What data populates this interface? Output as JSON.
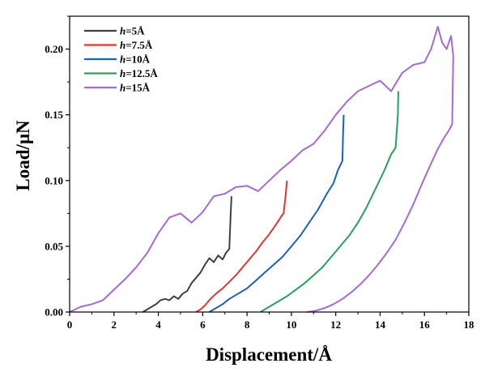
{
  "chart_data": {
    "type": "line",
    "xlabel": "Displacement/Å",
    "ylabel": "Load/μN",
    "xlim": [
      0,
      18
    ],
    "ylim": [
      0,
      0.225
    ],
    "xticks": [
      0,
      2,
      4,
      6,
      8,
      10,
      12,
      14,
      16,
      18
    ],
    "yticks": [
      0.0,
      0.05,
      0.1,
      0.15,
      0.2
    ],
    "ytick_labels": [
      "0.00",
      "0.05",
      "0.10",
      "0.15",
      "0.20"
    ],
    "xtick_labels": [
      "0",
      "2",
      "4",
      "6",
      "8",
      "10",
      "12",
      "14",
      "16",
      "18"
    ],
    "legend_position": "top-left",
    "grid": false,
    "series": [
      {
        "name_prefix": "h",
        "name_suffix": "=5Å",
        "color": "#404040",
        "x": [
          3.3,
          3.6,
          3.9,
          4.1,
          4.3,
          4.5,
          4.7,
          4.9,
          5.1,
          5.3,
          5.5,
          5.7,
          5.9,
          6.1,
          6.3,
          6.5,
          6.7,
          6.9,
          7.05,
          7.2,
          7.25,
          7.3
        ],
        "y": [
          0.0,
          0.003,
          0.006,
          0.009,
          0.01,
          0.009,
          0.012,
          0.01,
          0.014,
          0.016,
          0.022,
          0.026,
          0.03,
          0.036,
          0.041,
          0.038,
          0.043,
          0.04,
          0.045,
          0.048,
          0.07,
          0.088
        ]
      },
      {
        "name_prefix": "h",
        "name_suffix": "=7.5Å",
        "color": "#e8332e",
        "x": [
          5.7,
          5.9,
          6.1,
          6.3,
          6.6,
          6.9,
          7.2,
          7.5,
          7.8,
          8.1,
          8.4,
          8.7,
          8.95,
          9.2,
          9.4,
          9.55,
          9.65,
          9.75,
          9.8
        ],
        "y": [
          0.0,
          0.002,
          0.005,
          0.009,
          0.014,
          0.018,
          0.023,
          0.028,
          0.034,
          0.04,
          0.046,
          0.053,
          0.058,
          0.064,
          0.069,
          0.073,
          0.075,
          0.09,
          0.1
        ]
      },
      {
        "name_prefix": "h",
        "name_suffix": "=10Å",
        "color": "#1a5fc8",
        "x": [
          6.3,
          6.6,
          6.9,
          7.2,
          7.6,
          8.0,
          8.4,
          8.8,
          9.2,
          9.6,
          10.0,
          10.4,
          10.8,
          11.2,
          11.6,
          11.9,
          12.1,
          12.3,
          12.33,
          12.36
        ],
        "y": [
          0.0,
          0.003,
          0.006,
          0.01,
          0.014,
          0.018,
          0.024,
          0.03,
          0.036,
          0.042,
          0.05,
          0.058,
          0.068,
          0.078,
          0.09,
          0.098,
          0.108,
          0.115,
          0.135,
          0.15
        ]
      },
      {
        "name_prefix": "h",
        "name_suffix": "=12.5Å",
        "color": "#23a35a",
        "x": [
          8.6,
          9.0,
          9.4,
          9.8,
          10.2,
          10.6,
          11.0,
          11.4,
          11.8,
          12.2,
          12.6,
          13.0,
          13.4,
          13.8,
          14.2,
          14.5,
          14.7,
          14.8,
          14.82
        ],
        "y": [
          0.0,
          0.004,
          0.008,
          0.012,
          0.017,
          0.022,
          0.028,
          0.034,
          0.042,
          0.05,
          0.058,
          0.068,
          0.08,
          0.094,
          0.108,
          0.12,
          0.125,
          0.15,
          0.168
        ]
      },
      {
        "name_prefix": "h",
        "name_suffix": "=15Å",
        "color": "#a569dc",
        "loading": {
          "x": [
            0.0,
            0.5,
            1.0,
            1.5,
            2.0,
            2.5,
            3.0,
            3.5,
            4.0,
            4.5,
            5.0,
            5.5,
            6.0,
            6.5,
            7.0,
            7.5,
            8.0,
            8.5,
            9.0,
            9.5,
            10.0,
            10.5,
            11.0,
            11.5,
            12.0,
            12.5,
            13.0,
            13.5,
            14.0,
            14.5,
            15.0,
            15.5,
            16.0,
            16.3,
            16.6,
            16.8,
            17.0,
            17.2,
            17.3
          ],
          "y": [
            0.0,
            0.004,
            0.006,
            0.009,
            0.017,
            0.025,
            0.034,
            0.045,
            0.06,
            0.072,
            0.075,
            0.068,
            0.076,
            0.088,
            0.09,
            0.095,
            0.096,
            0.092,
            0.1,
            0.108,
            0.115,
            0.123,
            0.128,
            0.138,
            0.15,
            0.16,
            0.168,
            0.172,
            0.176,
            0.168,
            0.182,
            0.188,
            0.19,
            0.2,
            0.217,
            0.205,
            0.2,
            0.21,
            0.195
          ]
        },
        "unloading": {
          "x": [
            10.7,
            11.1,
            11.5,
            11.9,
            12.3,
            12.7,
            13.1,
            13.5,
            13.9,
            14.3,
            14.7,
            15.1,
            15.5,
            15.9,
            16.3,
            16.6,
            16.9,
            17.1,
            17.25,
            17.3
          ],
          "y": [
            0.0,
            0.001,
            0.003,
            0.006,
            0.01,
            0.015,
            0.021,
            0.028,
            0.036,
            0.045,
            0.055,
            0.068,
            0.082,
            0.098,
            0.113,
            0.124,
            0.133,
            0.138,
            0.143,
            0.195
          ]
        }
      }
    ]
  }
}
